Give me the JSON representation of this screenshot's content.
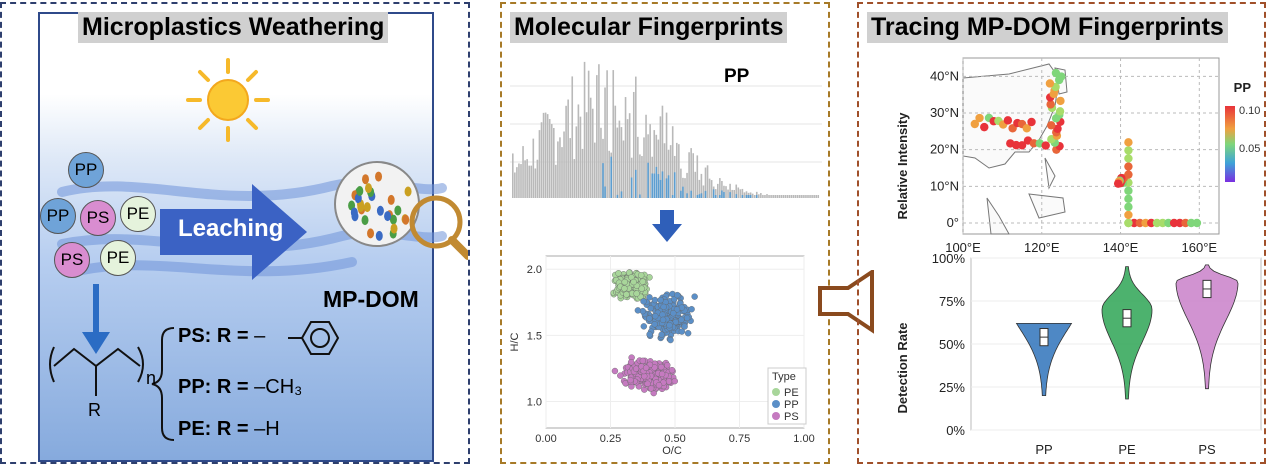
{
  "panel1": {
    "title": "Microplastics Weathering",
    "particles": [
      "PP",
      "PP",
      "PS",
      "PE",
      "PS",
      "PE"
    ],
    "arrow_label": "Leaching",
    "mpdom_label": "MP-DOM",
    "polymer_sub": "n",
    "polymer_r": "R",
    "formulas": [
      {
        "prefix": "PS: R =",
        "value": "–"
      },
      {
        "prefix": "PP: R =",
        "value": "–CH₃"
      },
      {
        "prefix": "PE: R =",
        "value": "–H"
      }
    ],
    "colors": {
      "arrow": "#3b62c4",
      "sun": "#fbc934"
    }
  },
  "panel2": {
    "title": "Molecular Fingerprints",
    "spectrum_label": "PP",
    "scatter": {
      "xlabel": "O/C",
      "ylabel": "H/C",
      "xticks": [
        "0.00",
        "0.25",
        "0.50",
        "0.75",
        "1.00"
      ],
      "yticks": [
        "1.0",
        "1.5",
        "2.0"
      ],
      "legend_title": "Type",
      "legend": [
        "PE",
        "PP",
        "PS"
      ]
    }
  },
  "panel3": {
    "title": "Tracing MP-DOM Fingerprints",
    "map_ylabel": "Relative Intensity",
    "map_label": "PP",
    "lat_ticks": [
      "40°N",
      "30°N",
      "20°N",
      "10°N",
      "0°"
    ],
    "lon_ticks": [
      "100°E",
      "120°E",
      "140°E",
      "160°E"
    ],
    "colorbar_ticks": [
      "0.10",
      "0.05"
    ],
    "violin_ylabel": "Detection Rate",
    "violin_yticks": [
      "100%",
      "75%",
      "50%",
      "25%",
      "0%"
    ],
    "violin_categories": [
      "PP",
      "PE",
      "PS"
    ]
  },
  "chart_data": [
    {
      "type": "scatter",
      "xlabel": "O/C",
      "ylabel": "H/C",
      "xlim": [
        0,
        1
      ],
      "ylim": [
        0.8,
        2.1
      ],
      "series": [
        {
          "name": "PE",
          "color": "#a8d69a",
          "center": [
            0.33,
            1.88
          ],
          "spread": [
            0.09,
            0.12
          ]
        },
        {
          "name": "PP",
          "color": "#5b8fc7",
          "center": [
            0.47,
            1.65
          ],
          "spread": [
            0.12,
            0.22
          ]
        },
        {
          "name": "PS",
          "color": "#c57ac0",
          "center": [
            0.4,
            1.2
          ],
          "spread": [
            0.14,
            0.15
          ]
        }
      ]
    },
    {
      "type": "violin",
      "categories": [
        "PP",
        "PE",
        "PS"
      ],
      "ylabel": "Detection Rate",
      "ylim": [
        0,
        100
      ],
      "medians": [
        54,
        65,
        82
      ],
      "colors": [
        "#3b7bbf",
        "#3aaa5e",
        "#cc87cc"
      ]
    }
  ]
}
